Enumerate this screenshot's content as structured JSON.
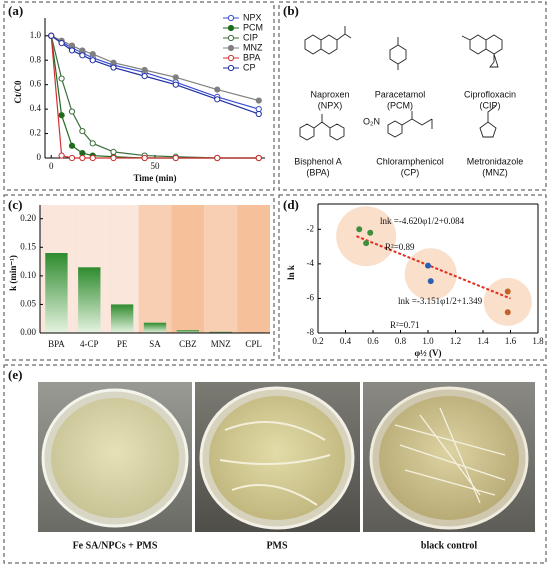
{
  "panel_labels": [
    "(a)",
    "(b)",
    "(c)",
    "(d)",
    "(e)"
  ],
  "chart_data": [
    {
      "type": "line",
      "x_label": "Time (min)",
      "y_label": "Ct/C0",
      "x": [
        0,
        5,
        10,
        15,
        20,
        30,
        45,
        60,
        80,
        100
      ],
      "xlim": [
        -3,
        103
      ],
      "xticks": [
        0,
        50
      ],
      "ylim": [
        0,
        1.08
      ],
      "yticks": [
        0,
        0.2,
        0.4,
        0.6,
        0.8,
        {
          "value": 1,
          "label": "1.0"
        }
      ],
      "legend": "upper right",
      "series": [
        {
          "name": "NPX",
          "color": "#3a4fd0",
          "marker": "open",
          "values": [
            1,
            0.95,
            0.9,
            0.86,
            0.82,
            0.76,
            0.7,
            0.62,
            0.5,
            0.4
          ]
        },
        {
          "name": "PCM",
          "color": "#1f6b1f",
          "marker": "filled",
          "values": [
            1,
            0.35,
            0.1,
            0.04,
            0.02,
            0.01,
            0,
            0,
            0,
            0
          ]
        },
        {
          "name": "CIP",
          "color": "#3d6e3d",
          "marker": "open",
          "values": [
            1,
            0.65,
            0.38,
            0.22,
            0.12,
            0.05,
            0.02,
            0.01,
            0,
            0
          ]
        },
        {
          "name": "MNZ",
          "color": "#808080",
          "marker": "filled",
          "values": [
            1,
            0.96,
            0.92,
            0.88,
            0.85,
            0.78,
            0.72,
            0.66,
            0.56,
            0.47
          ]
        },
        {
          "name": "BPA",
          "color": "#d03030",
          "marker": "open",
          "values": [
            1,
            0.02,
            0,
            0,
            0,
            0,
            0,
            0,
            0,
            0
          ]
        },
        {
          "name": "CP",
          "color": "#2030a0",
          "marker": "open",
          "values": [
            1,
            0.94,
            0.88,
            0.84,
            0.8,
            0.74,
            0.67,
            0.6,
            0.48,
            0.36
          ]
        }
      ]
    },
    {
      "type": "bar",
      "y_label": "k (min⁻¹)",
      "categories": [
        "BPA",
        "4-CP",
        "PE",
        "SA",
        "CBZ",
        "MNZ",
        "CPL"
      ],
      "values": [
        0.14,
        0.115,
        0.05,
        0.018,
        0.005,
        0.002,
        0.001
      ],
      "color": "#2e8b2e",
      "ylim": [
        0,
        0.21
      ],
      "yticks": [
        {
          "value": 0,
          "label": "0.00"
        },
        {
          "value": 0.05,
          "label": "0.05"
        },
        {
          "value": 0.1,
          "label": "0.10"
        },
        {
          "value": 0.15,
          "label": "0.15"
        },
        {
          "value": 0.2,
          "label": "0.20"
        }
      ]
    },
    {
      "type": "scatter",
      "x_label": "φ½ (V)",
      "y_label": "ln k",
      "xlim": [
        0.2,
        1.8
      ],
      "xticks": [
        0.2,
        0.4,
        0.6,
        0.8,
        {
          "value": 1,
          "label": "1.0"
        },
        1.2,
        1.4,
        1.6,
        1.8
      ],
      "ylim": [
        -8,
        -1
      ],
      "yticks": [
        -2,
        -4,
        -6,
        -8
      ],
      "series": [
        {
          "color": "#3f8f3f",
          "x": [
            0.5,
            0.58,
            0.55
          ],
          "values": [
            -2.0,
            -2.2,
            -2.8
          ]
        },
        {
          "color": "#2d5fb0",
          "x": [
            1.0,
            1.02
          ],
          "values": [
            -4.1,
            -5.0
          ]
        },
        {
          "color": "#c0622a",
          "x": [
            1.58,
            1.58
          ],
          "values": [
            -5.6,
            -6.8
          ]
        }
      ],
      "trend_line": {
        "color": "#e03020",
        "x": [
          0.48,
          1.6
        ],
        "y": [
          -2.4,
          -6.0
        ]
      },
      "annotations": [
        "lnk =-4.620φ1/2+0.084",
        "R²=0.89",
        "lnk =-3.151φ1/2+1.349",
        "R²=0.71"
      ]
    }
  ],
  "structures": [
    {
      "name": "Naproxen",
      "abbr": "(NPX)"
    },
    {
      "name": "Paracetamol",
      "abbr": "(PCM)"
    },
    {
      "name": "Ciprofloxacin",
      "abbr": "(CIP)"
    },
    {
      "name": "Bisphenol A",
      "abbr": "(BPA)"
    },
    {
      "name": "Chloramphenicol",
      "abbr": "(CP)"
    },
    {
      "name": "Metronidazole",
      "abbr": "(MNZ)"
    }
  ],
  "photos": [
    "Fe SA/NPCs + PMS",
    "PMS",
    "black control"
  ]
}
